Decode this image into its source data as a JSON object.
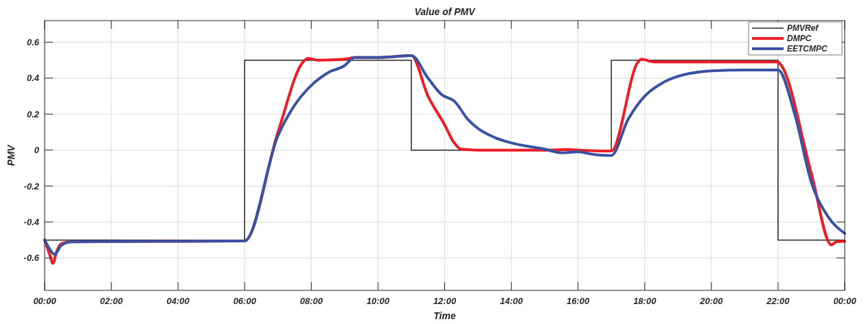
{
  "chart_data": {
    "type": "line",
    "title": "Value of PMV",
    "xlabel": "Time",
    "ylabel": "PMV",
    "xlim": [
      0,
      24
    ],
    "xticks": [
      {
        "value": 0,
        "label": "00:00"
      },
      {
        "value": 2,
        "label": "02:00"
      },
      {
        "value": 4,
        "label": "04:00"
      },
      {
        "value": 6,
        "label": "06:00"
      },
      {
        "value": 8,
        "label": "08:00"
      },
      {
        "value": 10,
        "label": "10:00"
      },
      {
        "value": 12,
        "label": "12:00"
      },
      {
        "value": 14,
        "label": "14:00"
      },
      {
        "value": 16,
        "label": "16:00"
      },
      {
        "value": 18,
        "label": "18:00"
      },
      {
        "value": 20,
        "label": "20:00"
      },
      {
        "value": 22,
        "label": "22:00"
      },
      {
        "value": 24,
        "label": "00:00"
      }
    ],
    "ylim": [
      -0.78,
      0.72
    ],
    "yticks": [
      -0.6,
      -0.4,
      -0.2,
      0,
      0.2,
      0.4,
      0.6
    ],
    "grid": true,
    "legend": "top right",
    "series": [
      {
        "name": "PMVRef",
        "color": "#222222",
        "x": [
          0,
          6,
          6,
          11,
          11,
          17,
          17,
          22,
          22,
          24
        ],
        "values": [
          -0.5,
          -0.5,
          0.5,
          0.5,
          0,
          0,
          0.5,
          0.5,
          -0.5,
          -0.5
        ]
      },
      {
        "name": "DMPC",
        "color": "#ee1c25",
        "x": [
          0,
          0.15,
          0.25,
          0.35,
          0.5,
          0.8,
          6,
          7,
          7.75,
          7.9,
          8.2,
          9,
          9.3,
          10,
          11,
          11.5,
          12,
          12.25,
          12.5,
          13,
          14,
          15,
          15.7,
          16,
          17,
          17.8,
          17.9,
          18.3,
          20,
          22,
          22.1,
          23,
          23.6,
          23.75,
          24
        ],
        "values": [
          -0.5,
          -0.58,
          -0.63,
          -0.57,
          -0.52,
          -0.51,
          -0.505,
          0.1,
          0.49,
          0.51,
          0.5,
          0.505,
          0.515,
          0.515,
          0.525,
          0.3,
          0.14,
          0.05,
          0.005,
          0,
          0,
          0,
          0.003,
          0,
          -0.005,
          0.49,
          0.505,
          0.49,
          0.49,
          0.49,
          0.47,
          -0.13,
          -0.527,
          -0.51,
          -0.507
        ]
      },
      {
        "name": "EETCMPC",
        "color": "#3953a4",
        "x": [
          0,
          0.15,
          0.3,
          0.5,
          0.8,
          6,
          7,
          7.5,
          8,
          8.5,
          9,
          9.3,
          10,
          10.5,
          11,
          11.5,
          11.9,
          12.3,
          12.7,
          13,
          13.5,
          14,
          15,
          15.5,
          16,
          16.5,
          17,
          17.5,
          18,
          18.5,
          19,
          20,
          21,
          22,
          22.5,
          23,
          23.5,
          24
        ],
        "values": [
          -0.5,
          -0.55,
          -0.58,
          -0.53,
          -0.51,
          -0.505,
          0.08,
          0.25,
          0.36,
          0.43,
          0.47,
          0.515,
          0.515,
          0.52,
          0.525,
          0.4,
          0.31,
          0.27,
          0.17,
          0.12,
          0.07,
          0.04,
          0.005,
          -0.015,
          -0.01,
          -0.025,
          -0.03,
          0.17,
          0.3,
          0.37,
          0.41,
          0.44,
          0.445,
          0.445,
          0.2,
          -0.18,
          -0.37,
          -0.463
        ]
      }
    ]
  }
}
